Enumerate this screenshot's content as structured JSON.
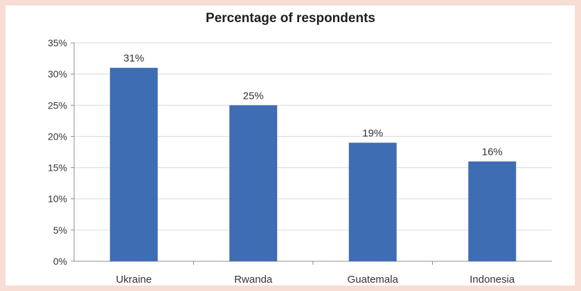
{
  "chart_data": {
    "type": "bar",
    "title": "Percentage of respondents",
    "categories": [
      "Ukraine",
      "Rwanda",
      "Guatemala",
      "Indonesia"
    ],
    "values": [
      31,
      25,
      19,
      16
    ],
    "value_labels": [
      "31%",
      "25%",
      "19%",
      "16%"
    ],
    "yticks": [
      "0%",
      "5%",
      "10%",
      "15%",
      "20%",
      "25%",
      "30%",
      "35%"
    ],
    "ylim": [
      0,
      35
    ],
    "xlabel": "",
    "ylabel": "",
    "grid": true,
    "bar_color": "#3f6db3",
    "grid_color": "#d9d9d9"
  }
}
